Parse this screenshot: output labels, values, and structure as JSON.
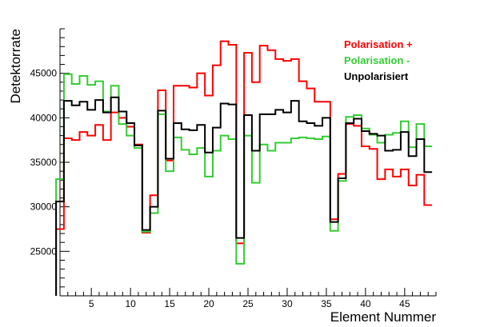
{
  "chart_data": {
    "type": "line",
    "step": true,
    "title": "",
    "xlabel": "Element Nummer",
    "ylabel": "Detektorrate",
    "xlim": [
      1,
      49
    ],
    "ylim": [
      20000,
      50000
    ],
    "x_ticks": [
      5,
      10,
      15,
      20,
      25,
      30,
      35,
      40,
      45
    ],
    "y_ticks": [
      25000,
      30000,
      35000,
      40000,
      45000
    ],
    "legend_position": "top-right",
    "grid": false,
    "x": [
      1,
      2,
      3,
      4,
      5,
      6,
      7,
      8,
      9,
      10,
      11,
      12,
      13,
      14,
      15,
      16,
      17,
      18,
      19,
      20,
      21,
      22,
      23,
      24,
      25,
      26,
      27,
      28,
      29,
      30,
      31,
      32,
      33,
      34,
      35,
      36,
      37,
      38,
      39,
      40,
      41,
      42,
      43,
      44,
      45,
      46,
      47,
      48
    ],
    "series": [
      {
        "name": "Polarisation +",
        "color": "#ff0000",
        "values": [
          27500,
          37700,
          37500,
          38400,
          38000,
          39200,
          37500,
          40600,
          40000,
          39000,
          37000,
          27100,
          31300,
          43100,
          35200,
          43600,
          43600,
          43400,
          45000,
          42500,
          45900,
          48600,
          48200,
          25900,
          47300,
          44000,
          48100,
          47600,
          46600,
          46400,
          46600,
          44100,
          43300,
          41800,
          41800,
          28600,
          33700,
          39300,
          39100,
          36800,
          36500,
          33100,
          34200,
          33400,
          34200,
          32400,
          33600,
          30200
        ]
      },
      {
        "name": "Polarisation -",
        "color": "#33cc33",
        "values": [
          33100,
          44900,
          43800,
          44700,
          43700,
          44100,
          40700,
          43600,
          39300,
          38000,
          36600,
          27200,
          29300,
          40400,
          34000,
          37800,
          36400,
          35900,
          36600,
          33400,
          36300,
          38000,
          37600,
          23600,
          38000,
          32700,
          37000,
          36300,
          37200,
          37200,
          37700,
          37800,
          37700,
          37600,
          37900,
          27300,
          32900,
          40100,
          40300,
          38800,
          38100,
          37200,
          38100,
          38300,
          39600,
          36700,
          39300,
          36800
        ]
      },
      {
        "name": "Unpolarisiert",
        "color": "#000000",
        "values": [
          30600,
          41900,
          41400,
          41800,
          40900,
          42000,
          40600,
          42300,
          40700,
          39400,
          36900,
          27400,
          30000,
          40800,
          35400,
          39400,
          38700,
          38600,
          39200,
          36100,
          38900,
          41600,
          41500,
          26500,
          40300,
          36300,
          40400,
          40400,
          40900,
          40600,
          41900,
          39600,
          39400,
          39100,
          40000,
          28300,
          33200,
          39400,
          39900,
          38500,
          38200,
          38000,
          36300,
          36400,
          38400,
          35700,
          37600,
          33900
        ]
      }
    ]
  }
}
